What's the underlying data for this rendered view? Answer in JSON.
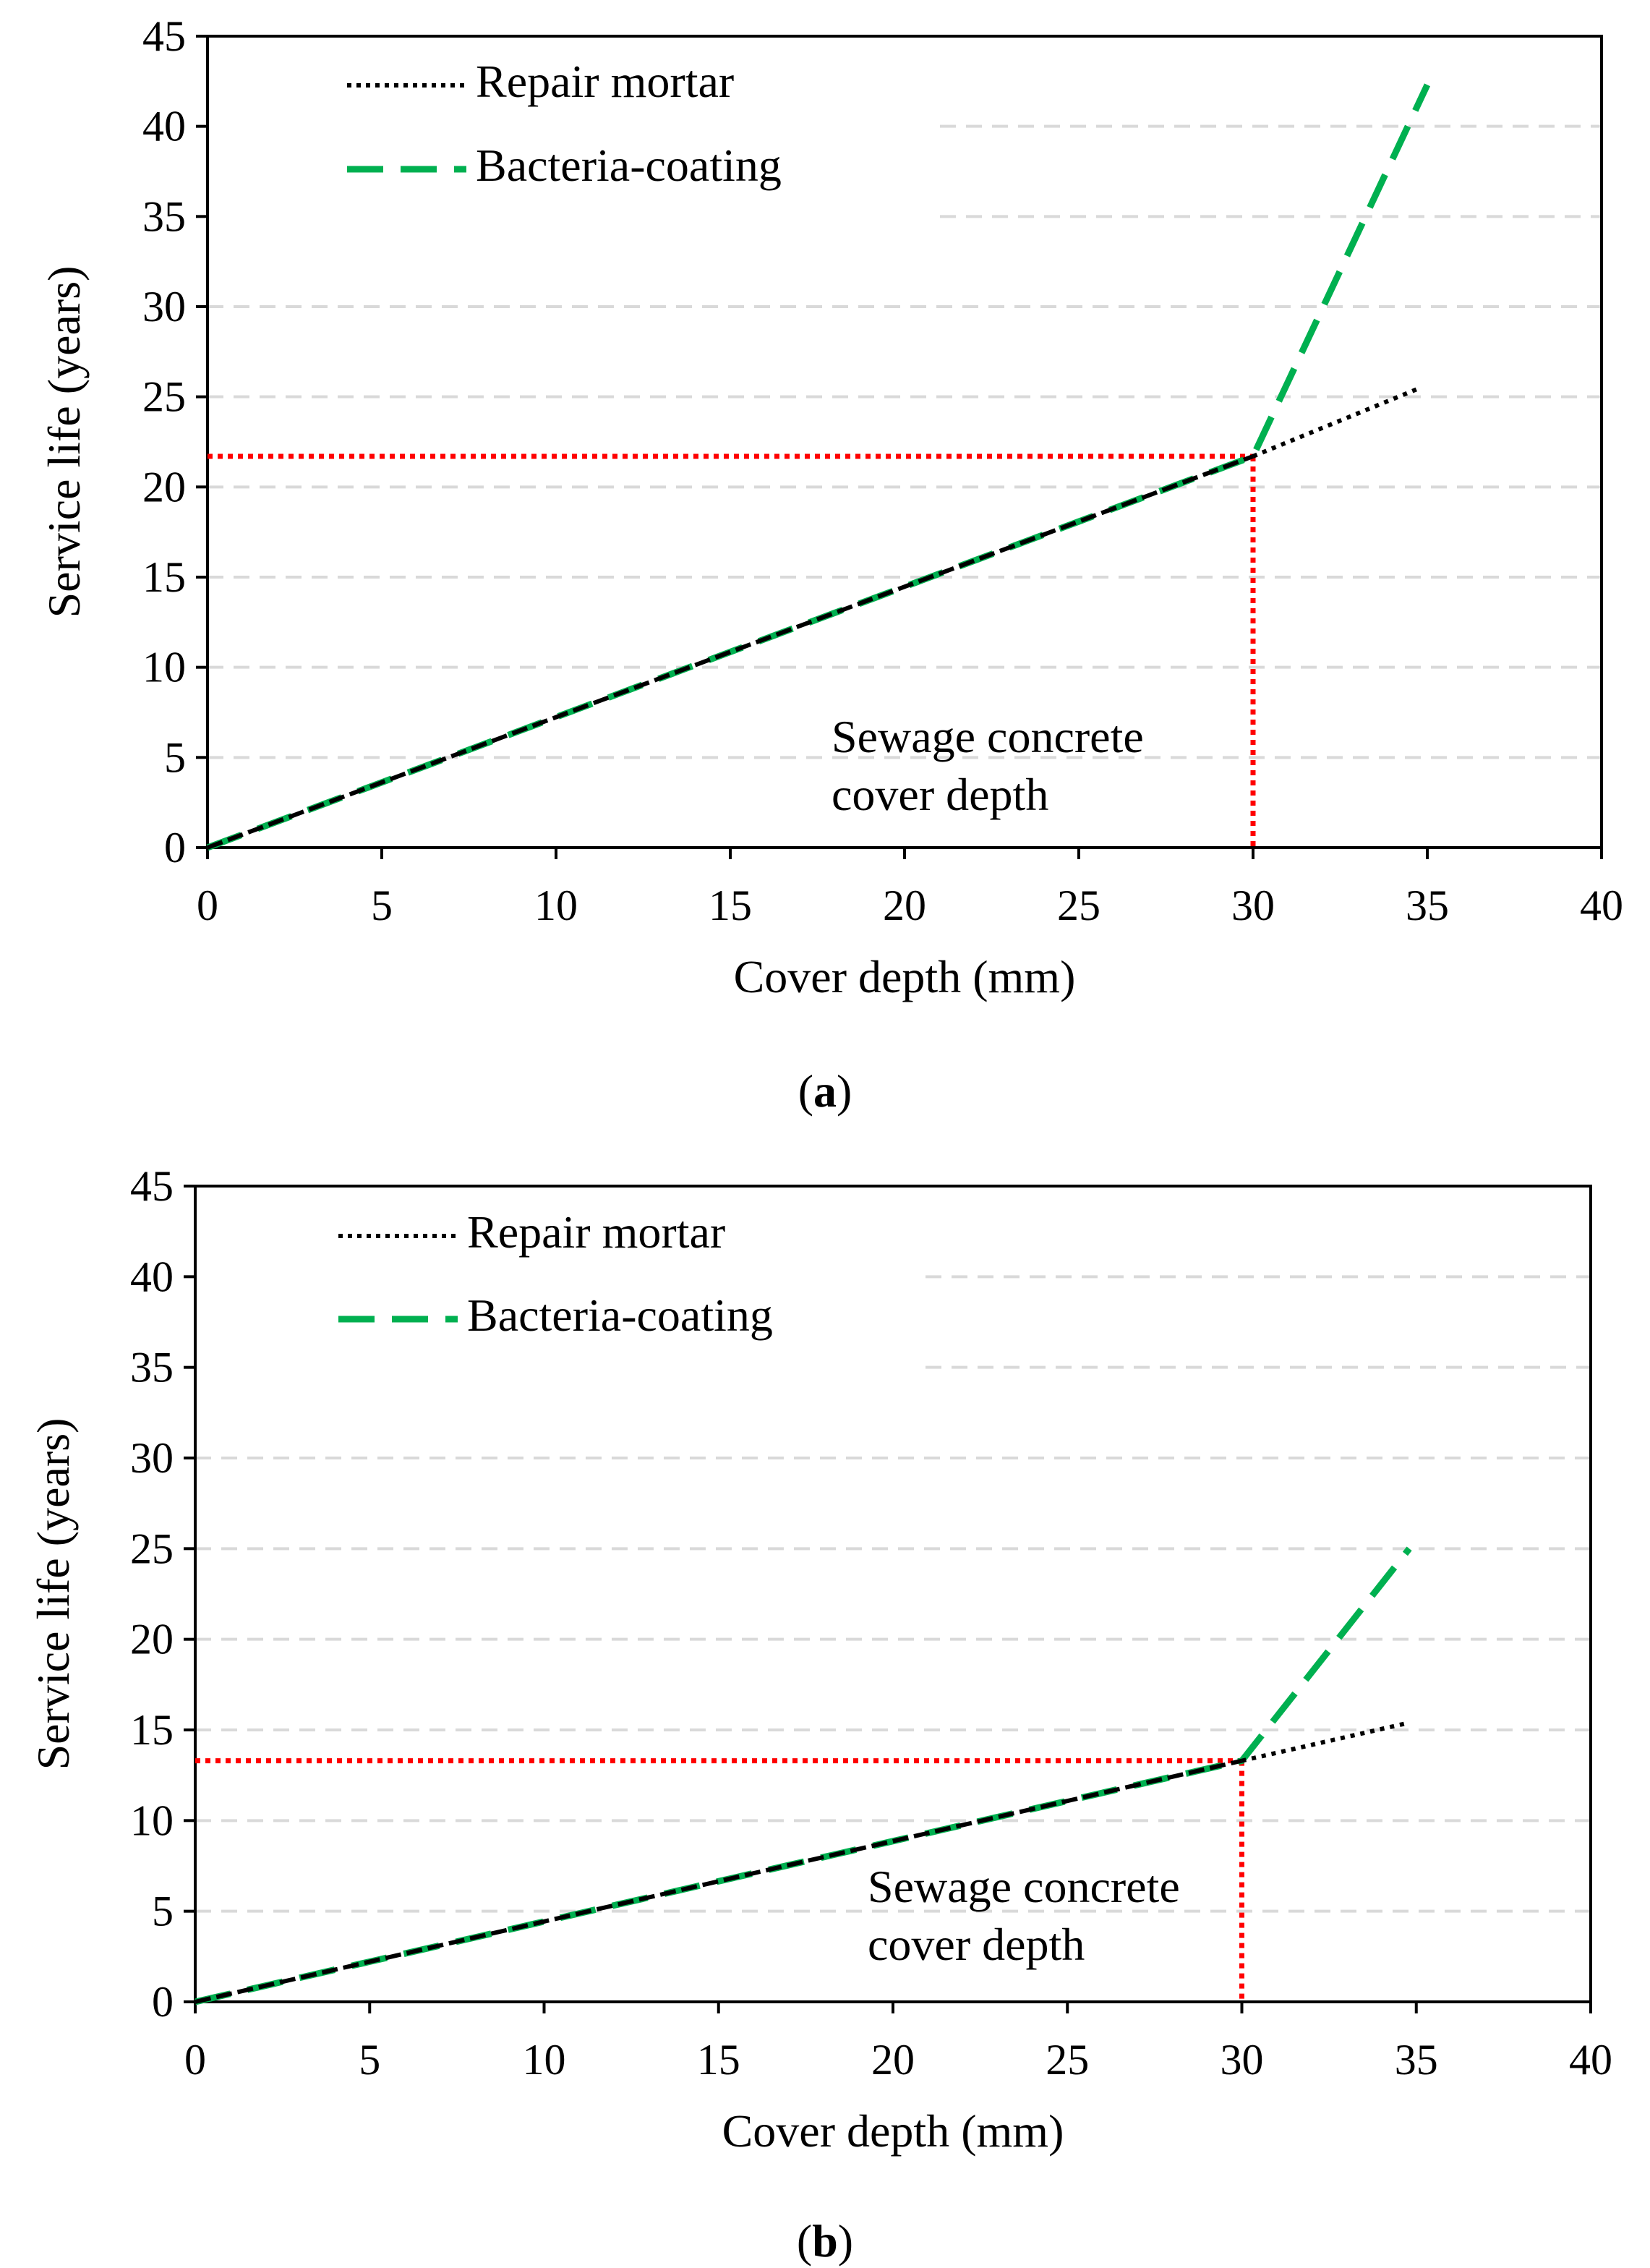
{
  "chart_data": [
    {
      "type": "line",
      "panel": "a",
      "caption": {
        "open": "(",
        "letter": "a",
        "close": ")"
      },
      "xlabel": "Cover depth (mm)",
      "ylabel": "Service life (years)",
      "xlim": [
        0,
        40
      ],
      "ylim": [
        0,
        45
      ],
      "xticks": [
        0,
        5,
        10,
        15,
        20,
        25,
        30,
        35,
        40
      ],
      "yticks": [
        0,
        5,
        10,
        15,
        20,
        25,
        30,
        35,
        40,
        45
      ],
      "grid": "horizontal dashed",
      "legend_position": "top-left",
      "series": [
        {
          "name": "Repair mortar",
          "style": "dotted",
          "color": "#000000",
          "x": [
            0,
            30,
            34.8
          ],
          "y": [
            0,
            21.7,
            25.5
          ]
        },
        {
          "name": "Bacteria-coating",
          "style": "dashed",
          "color": "#00b050",
          "x": [
            0,
            30,
            35
          ],
          "y": [
            0,
            21.7,
            42.3
          ]
        }
      ],
      "reference": {
        "style": "dotted",
        "color": "#ff0000",
        "x": 30,
        "y": 21.7
      },
      "annotation": {
        "lines": [
          "Sewage concrete",
          "cover depth"
        ]
      }
    },
    {
      "type": "line",
      "panel": "b",
      "caption": {
        "open": "(",
        "letter": "b",
        "close": ")"
      },
      "xlabel": "Cover depth (mm)",
      "ylabel": "Service life (years)",
      "xlim": [
        0,
        40
      ],
      "ylim": [
        0,
        45
      ],
      "xticks": [
        0,
        5,
        10,
        15,
        20,
        25,
        30,
        35,
        40
      ],
      "yticks": [
        0,
        5,
        10,
        15,
        20,
        25,
        30,
        35,
        40,
        45
      ],
      "grid": "horizontal dashed",
      "legend_position": "top-left",
      "series": [
        {
          "name": "Repair mortar",
          "style": "dotted",
          "color": "#000000",
          "x": [
            0,
            30,
            34.8
          ],
          "y": [
            0,
            13.3,
            15.4
          ]
        },
        {
          "name": "Bacteria-coating",
          "style": "dashed",
          "color": "#00b050",
          "x": [
            0,
            30,
            34.8
          ],
          "y": [
            0,
            13.3,
            25
          ]
        }
      ],
      "reference": {
        "style": "dotted",
        "color": "#ff0000",
        "x": 30,
        "y": 13.3
      },
      "annotation": {
        "lines": [
          "Sewage concrete",
          "cover depth"
        ]
      }
    }
  ]
}
